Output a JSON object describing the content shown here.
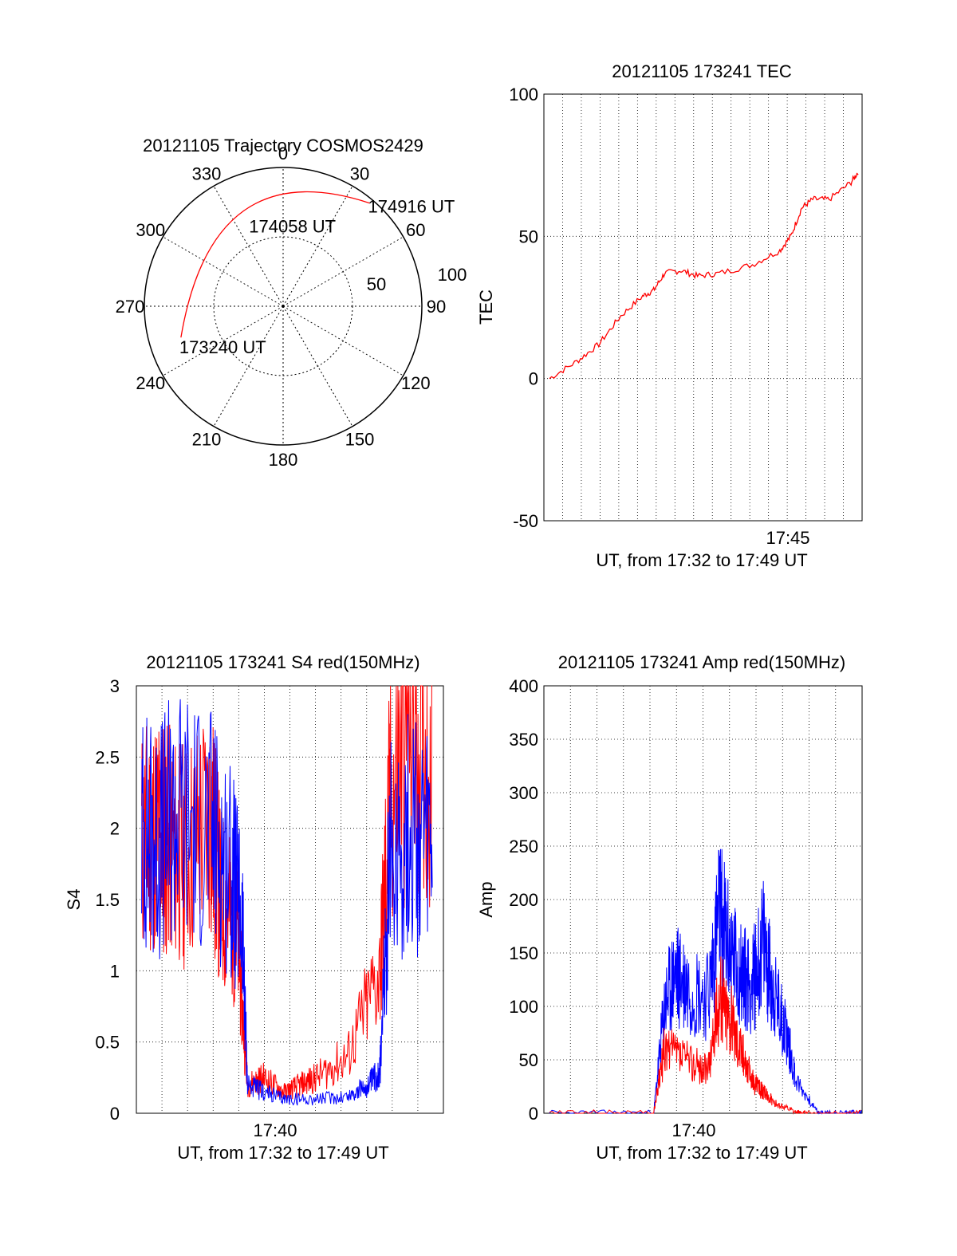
{
  "chart_data": [
    {
      "id": "trajectory",
      "type": "polar",
      "title": "20121105 Trajectory COSMOS2429",
      "azimuth_labels": [
        "0",
        "30",
        "60",
        "90",
        "120",
        "150",
        "180",
        "210",
        "240",
        "270",
        "300",
        "330"
      ],
      "elevation_labels": [
        "50",
        "100"
      ],
      "points": [
        {
          "label": "173240 UT",
          "az": 253,
          "zen": 77
        },
        {
          "label": "174058 UT",
          "az": 330,
          "zen": 56
        },
        {
          "label": "174916 UT",
          "az": 40,
          "zen": 97
        }
      ],
      "colors": {
        "track": "#ff0000"
      }
    },
    {
      "id": "tec",
      "type": "line",
      "title": "20121105 173241 TEC",
      "ylabel": "TEC",
      "xlabel": "UT, from 17:32 to 17:49 UT",
      "xtick_labels": [
        "17:45"
      ],
      "ytick_labels": [
        "100",
        "50",
        "0",
        "-50"
      ],
      "ylim": [
        -50,
        100
      ],
      "xlim_minutes": [
        17.53,
        17.82
      ],
      "series": [
        {
          "color": "#ff0000",
          "x": [
            17.535,
            17.56,
            17.58,
            17.6,
            17.62,
            17.63,
            17.64,
            17.655,
            17.67,
            17.69,
            17.72,
            17.745,
            17.755,
            17.765,
            17.775,
            17.79,
            17.81,
            17.817
          ],
          "y": [
            0,
            6,
            12,
            22,
            29,
            31,
            37,
            38,
            36,
            37,
            40,
            45,
            50,
            60,
            63,
            63,
            69,
            73
          ]
        }
      ]
    },
    {
      "id": "s4",
      "type": "line",
      "title": "20121105 173241 S4 red(150MHz)",
      "ylabel": "S4",
      "xlabel": "UT, from 17:32 to 17:49 UT",
      "xtick_labels": [
        "17:40"
      ],
      "ytick_labels": [
        "0",
        "0.5",
        "1",
        "1.5",
        "2",
        "2.5",
        "3"
      ],
      "ylim": [
        0,
        3
      ],
      "series": [
        {
          "color": "#ff0000",
          "x": [
            17.535,
            17.55,
            17.56,
            17.575,
            17.6,
            17.61,
            17.625,
            17.635,
            17.65,
            17.67,
            17.685,
            17.7,
            17.73,
            17.76,
            17.77,
            17.79,
            17.81
          ],
          "y": [
            1.9,
            2.0,
            1.9,
            1.8,
            2.1,
            1.5,
            1.3,
            0.2,
            0.25,
            0.15,
            0.2,
            0.25,
            0.4,
            1.0,
            2.2,
            2.8,
            2.5
          ]
        },
        {
          "color": "#0000ff",
          "x": [
            17.535,
            17.55,
            17.57,
            17.6,
            17.62,
            17.63,
            17.635,
            17.65,
            17.67,
            17.7,
            17.73,
            17.75,
            17.76,
            17.77,
            17.79,
            17.81
          ],
          "y": [
            2.0,
            1.9,
            2.1,
            2.0,
            1.7,
            1.3,
            0.2,
            0.15,
            0.1,
            0.1,
            0.12,
            0.2,
            0.3,
            1.8,
            2.0,
            1.8
          ]
        }
      ]
    },
    {
      "id": "amp",
      "type": "line",
      "title": "20121105 173241 Amp red(150MHz)",
      "ylabel": "Amp",
      "xlabel": "UT, from 17:32 to 17:49 UT",
      "xtick_labels": [
        "17:40"
      ],
      "ytick_labels": [
        "0",
        "50",
        "100",
        "150",
        "200",
        "250",
        "300",
        "350",
        "400"
      ],
      "ylim": [
        0,
        400
      ],
      "series": [
        {
          "color": "#0000ff",
          "x": [
            17.535,
            17.63,
            17.64,
            17.65,
            17.66,
            17.68,
            17.69,
            17.7,
            17.71,
            17.72,
            17.73,
            17.74,
            17.75,
            17.76,
            17.78,
            17.8,
            17.82
          ],
          "y": [
            0,
            0,
            100,
            130,
            120,
            110,
            190,
            150,
            130,
            120,
            160,
            110,
            80,
            30,
            0,
            0,
            0
          ]
        },
        {
          "color": "#ff0000",
          "x": [
            17.535,
            17.63,
            17.64,
            17.66,
            17.68,
            17.69,
            17.7,
            17.71,
            17.72,
            17.73,
            17.74,
            17.76,
            17.77,
            17.82
          ],
          "y": [
            0,
            0,
            60,
            50,
            40,
            110,
            90,
            60,
            30,
            20,
            10,
            0,
            0,
            0
          ]
        }
      ]
    }
  ]
}
